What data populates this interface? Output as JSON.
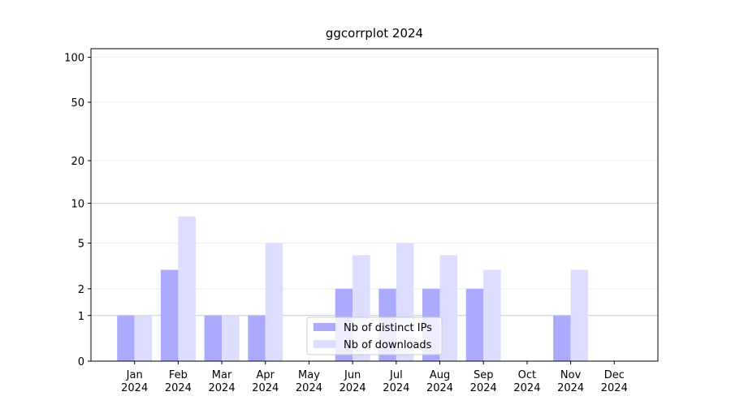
{
  "chart_data": {
    "type": "bar",
    "title": "ggcorrplot 2024",
    "categories": [
      [
        "Jan",
        "2024"
      ],
      [
        "Feb",
        "2024"
      ],
      [
        "Mar",
        "2024"
      ],
      [
        "Apr",
        "2024"
      ],
      [
        "May",
        "2024"
      ],
      [
        "Jun",
        "2024"
      ],
      [
        "Jul",
        "2024"
      ],
      [
        "Aug",
        "2024"
      ],
      [
        "Sep",
        "2024"
      ],
      [
        "Oct",
        "2024"
      ],
      [
        "Nov",
        "2024"
      ],
      [
        "Dec",
        "2024"
      ]
    ],
    "series": [
      {
        "name": "Nb of distinct IPs",
        "color": "#aaaaff",
        "values": [
          1,
          3,
          1,
          1,
          0,
          2,
          2,
          2,
          2,
          0,
          1,
          0
        ]
      },
      {
        "name": "Nb of downloads",
        "color": "#ddddff",
        "values": [
          1,
          8,
          1,
          5,
          0,
          4,
          5,
          4,
          3,
          0,
          3,
          0
        ]
      }
    ],
    "yscale": "log1p",
    "ylim": [
      0,
      114
    ],
    "yticks": [
      0,
      1,
      2,
      5,
      10,
      20,
      50,
      100
    ],
    "grid": true,
    "legend": "lower center"
  }
}
